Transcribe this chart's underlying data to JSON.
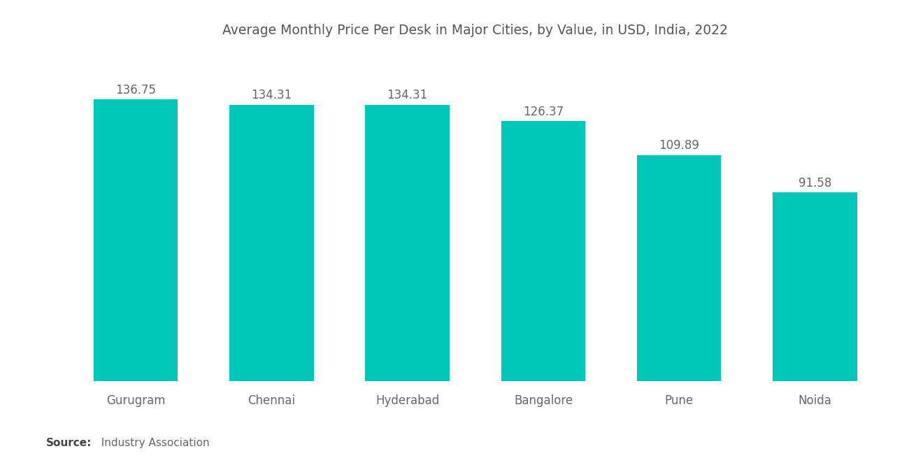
{
  "title": "Average Monthly Price Per Desk in Major Cities, by Value, in USD, India, 2022",
  "categories": [
    "Gurugram",
    "Chennai",
    "Hyderabad",
    "Bangalore",
    "Pune",
    "Noida"
  ],
  "values": [
    136.75,
    134.31,
    134.31,
    126.37,
    109.89,
    91.58
  ],
  "bar_color": "#00C8B8",
  "label_color": "#666666",
  "title_color": "#555555",
  "source_bold": "Source:",
  "source_text": "  Industry Association",
  "background_color": "#ffffff",
  "title_fontsize": 13.5,
  "label_fontsize": 12,
  "tick_fontsize": 12,
  "source_fontsize": 11,
  "ylim": [
    0,
    158
  ]
}
